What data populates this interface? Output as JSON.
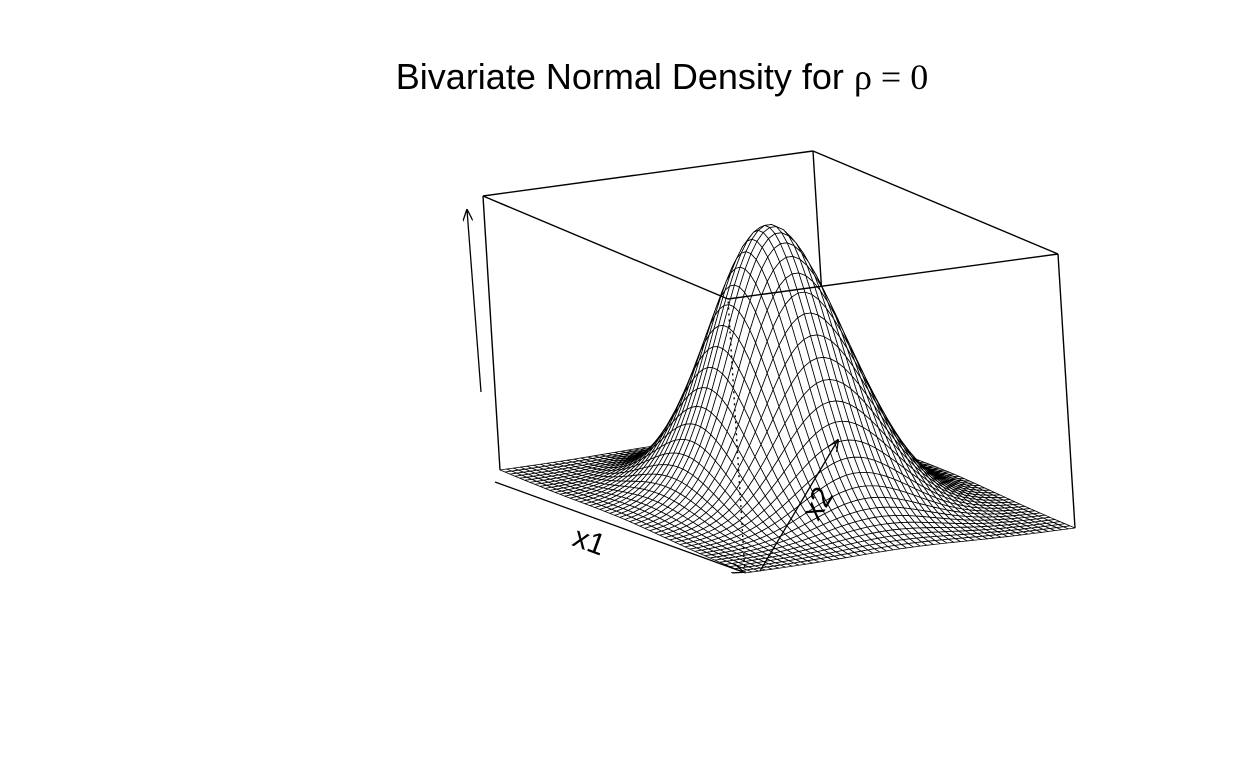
{
  "chart_data": {
    "type": "surface",
    "title": "Bivariate Normal Density for",
    "title_symbol": "ρ = 0",
    "xlabel": "x1",
    "ylabel": "x2",
    "zlabel": "",
    "function": "bivariate normal density",
    "mean": [
      0,
      0
    ],
    "sd": [
      1,
      1
    ],
    "rho": 0,
    "x_range": [
      -3,
      3
    ],
    "y_range": [
      -3,
      3
    ],
    "grid_lines": 50,
    "box": true,
    "line_color": "#000000",
    "background_color": "#ffffff"
  }
}
